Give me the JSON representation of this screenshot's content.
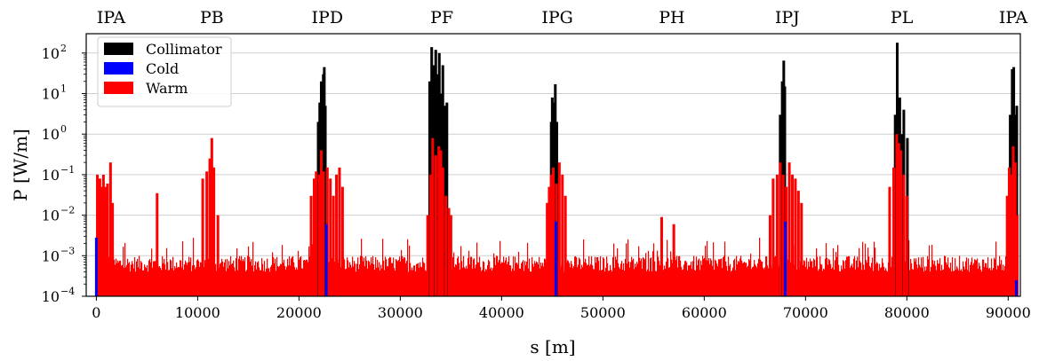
{
  "chart_data": {
    "type": "bar",
    "title": "",
    "xlabel": "s [m]",
    "ylabel": "P [W/m]",
    "yscale": "log",
    "grid": "horizontal",
    "legend_placement": "top-left",
    "xlim": [
      -1000,
      91200
    ],
    "ylim": [
      0.0001,
      300
    ],
    "x_ticks": [
      0,
      10000,
      20000,
      30000,
      40000,
      50000,
      60000,
      70000,
      80000,
      90000
    ],
    "y_ticks": [
      {
        "value": 0.0001,
        "base": "10",
        "exp": "−4"
      },
      {
        "value": 0.001,
        "base": "10",
        "exp": "−3"
      },
      {
        "value": 0.01,
        "base": "10",
        "exp": "−2"
      },
      {
        "value": 0.1,
        "base": "10",
        "exp": "−1"
      },
      {
        "value": 1,
        "base": "10",
        "exp": "0"
      },
      {
        "value": 10,
        "base": "10",
        "exp": "1"
      },
      {
        "value": 100,
        "base": "10",
        "exp": "2"
      }
    ],
    "top_labels": [
      {
        "label": "IPA",
        "x": 0
      },
      {
        "label": "PB",
        "x": 11400
      },
      {
        "label": "IPD",
        "x": 22800
      },
      {
        "label": "PF",
        "x": 34100
      },
      {
        "label": "IPG",
        "x": 45500
      },
      {
        "label": "PH",
        "x": 56800
      },
      {
        "label": "IPJ",
        "x": 68200
      },
      {
        "label": "PL",
        "x": 79500
      },
      {
        "label": "IPA",
        "x": 90700
      }
    ],
    "series": [
      {
        "name": "Collimator",
        "color": "#000000",
        "points": [
          [
            21900,
            2
          ],
          [
            22050,
            6
          ],
          [
            22200,
            20
          ],
          [
            22300,
            8
          ],
          [
            22400,
            30
          ],
          [
            22500,
            45
          ],
          [
            22600,
            5
          ],
          [
            32900,
            20
          ],
          [
            33100,
            140
          ],
          [
            33300,
            50
          ],
          [
            33500,
            120
          ],
          [
            33700,
            30
          ],
          [
            33850,
            100
          ],
          [
            34000,
            10
          ],
          [
            34200,
            50
          ],
          [
            34400,
            5
          ],
          [
            34600,
            6
          ],
          [
            44900,
            2
          ],
          [
            45000,
            8
          ],
          [
            45150,
            6
          ],
          [
            45300,
            17
          ],
          [
            45450,
            2
          ],
          [
            67500,
            3
          ],
          [
            67700,
            20
          ],
          [
            67850,
            65
          ],
          [
            67950,
            15
          ],
          [
            78850,
            3
          ],
          [
            79050,
            180
          ],
          [
            79300,
            8
          ],
          [
            79550,
            1
          ],
          [
            79700,
            4
          ],
          [
            80050,
            0.8
          ],
          [
            90200,
            3
          ],
          [
            90400,
            40
          ],
          [
            90550,
            45
          ],
          [
            90700,
            3
          ],
          [
            90850,
            5
          ]
        ]
      },
      {
        "name": "Cold",
        "color": "#0000ff",
        "points": [
          [
            0,
            0.0028
          ],
          [
            22700,
            0.006
          ],
          [
            45350,
            0.007
          ],
          [
            68000,
            0.007
          ],
          [
            90800,
            0.00025
          ]
        ]
      },
      {
        "name": "Warm",
        "color": "#ff0000",
        "baseline_noise": [
          0.0004,
          0.001
        ],
        "points": [
          [
            100,
            0.1
          ],
          [
            200,
            0.03
          ],
          [
            350,
            0.08
          ],
          [
            500,
            0.05
          ],
          [
            700,
            0.1
          ],
          [
            900,
            0.05
          ],
          [
            1100,
            0.06
          ],
          [
            1400,
            0.2
          ],
          [
            1600,
            0.02
          ],
          [
            6000,
            0.035
          ],
          [
            10500,
            0.08
          ],
          [
            10900,
            0.12
          ],
          [
            11200,
            0.25
          ],
          [
            11400,
            0.8
          ],
          [
            11600,
            0.15
          ],
          [
            12000,
            0.01
          ],
          [
            21200,
            0.03
          ],
          [
            21500,
            0.08
          ],
          [
            21700,
            0.12
          ],
          [
            22000,
            0.1
          ],
          [
            22200,
            0.4
          ],
          [
            22400,
            0.12
          ],
          [
            22800,
            0.15
          ],
          [
            23100,
            0.08
          ],
          [
            23400,
            0.03
          ],
          [
            23700,
            0.1
          ],
          [
            24000,
            0.15
          ],
          [
            24300,
            0.05
          ],
          [
            32700,
            0.01
          ],
          [
            33000,
            0.1
          ],
          [
            33200,
            0.8
          ],
          [
            33500,
            0.3
          ],
          [
            33800,
            0.5
          ],
          [
            34000,
            0.4
          ],
          [
            34200,
            0.15
          ],
          [
            34500,
            0.03
          ],
          [
            34800,
            0.015
          ],
          [
            35000,
            0.01
          ],
          [
            44500,
            0.02
          ],
          [
            44700,
            0.05
          ],
          [
            44900,
            0.1
          ],
          [
            45100,
            0.15
          ],
          [
            45400,
            0.06
          ],
          [
            45700,
            0.2
          ],
          [
            46000,
            0.1
          ],
          [
            46300,
            0.03
          ],
          [
            55800,
            0.009
          ],
          [
            57000,
            0.006
          ],
          [
            66500,
            0.01
          ],
          [
            66800,
            0.08
          ],
          [
            67200,
            0.1
          ],
          [
            67500,
            0.2
          ],
          [
            67800,
            0.1
          ],
          [
            68100,
            0.05
          ],
          [
            68400,
            0.2
          ],
          [
            68700,
            0.1
          ],
          [
            69000,
            0.08
          ],
          [
            69300,
            0.04
          ],
          [
            69600,
            0.02
          ],
          [
            78300,
            0.05
          ],
          [
            78700,
            0.15
          ],
          [
            79000,
            1.0
          ],
          [
            79200,
            0.6
          ],
          [
            79400,
            0.4
          ],
          [
            79700,
            0.1
          ],
          [
            80000,
            0.03
          ],
          [
            89900,
            0.03
          ],
          [
            90100,
            0.15
          ],
          [
            90300,
            0.1
          ],
          [
            90500,
            0.5
          ],
          [
            90700,
            0.2
          ],
          [
            90900,
            0.01
          ]
        ]
      }
    ]
  }
}
